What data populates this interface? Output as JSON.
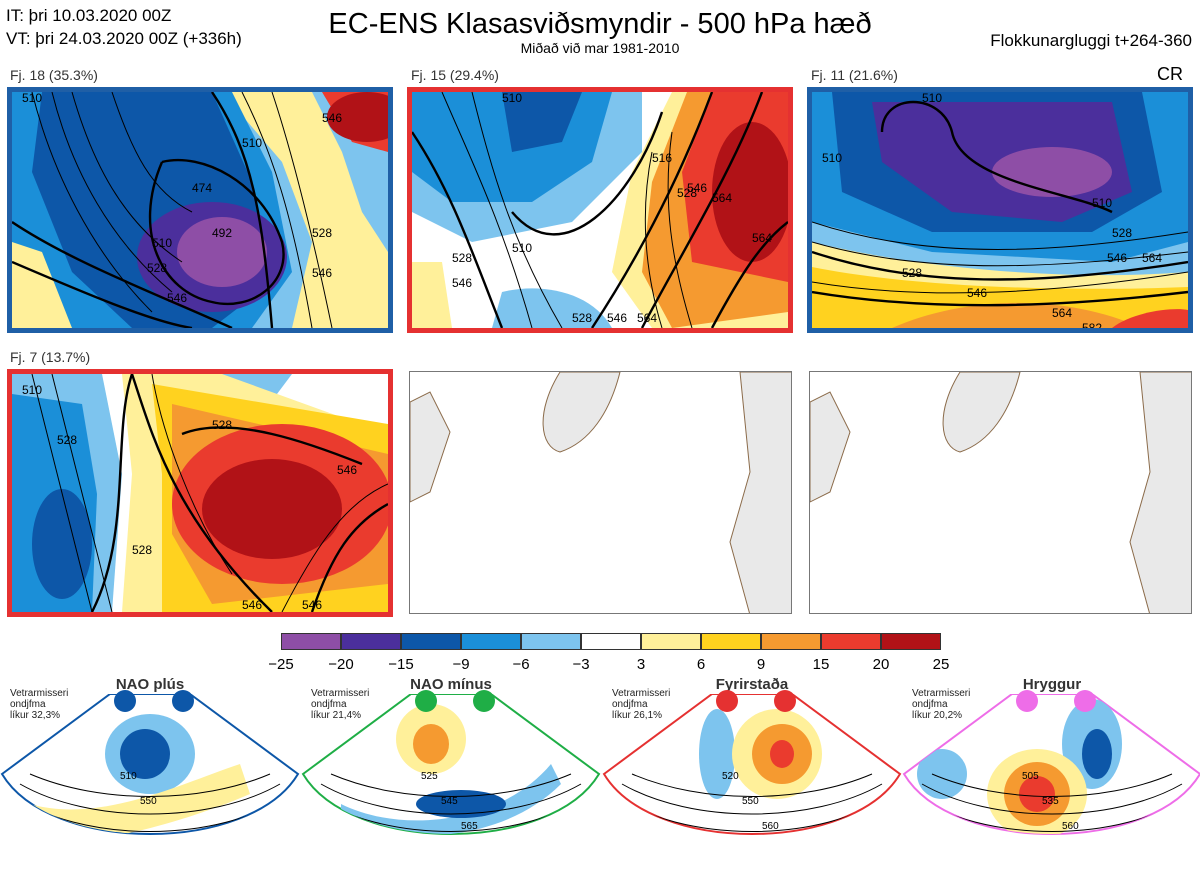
{
  "header": {
    "it_line": "IT: þri 10.03.2020 00Z",
    "vt_line": "VT: þri 24.03.2020 00Z  (+336h)",
    "title": "EC-ENS Klasasviðsmyndir - 500 hPa hæð",
    "subtitle": "Miðað við mar 1981-2010",
    "window": "Flokkunargluggi t+264-360",
    "regime_code": "CR"
  },
  "panels": [
    {
      "label": "Fj. 18 (35.3%)",
      "border": "#1f5fa6",
      "contours": [
        "474",
        "492",
        "510",
        "528",
        "546",
        "510",
        "528",
        "546",
        "510",
        "546"
      ]
    },
    {
      "label": "Fj. 15 (29.4%)",
      "border": "#e53131",
      "contours": [
        "510",
        "516",
        "528",
        "546",
        "564",
        "510",
        "528",
        "546",
        "564",
        "528",
        "546",
        "564"
      ]
    },
    {
      "label": "Fj. 11 (21.6%)",
      "border": "#1f5fa6",
      "contours": [
        "510",
        "510",
        "528",
        "528",
        "546",
        "564",
        "546",
        "564",
        "582",
        "510"
      ]
    },
    {
      "label": "Fj. 7 (13.7%)",
      "border": "#e53131",
      "contours": [
        "528",
        "546",
        "528",
        "546",
        "546",
        "510",
        "528"
      ]
    }
  ],
  "colorbar": {
    "ticks": [
      "−25",
      "−20",
      "−15",
      "−9",
      "−6",
      "−3",
      "3",
      "6",
      "9",
      "15",
      "20",
      "25"
    ],
    "colors": [
      "#8e4ea6",
      "#4b2f9c",
      "#0d57a8",
      "#1b8fd8",
      "#7dc4ee",
      "#ffffff",
      "#fff09a",
      "#ffd21f",
      "#f59a30",
      "#ea3b2e",
      "#b11217"
    ]
  },
  "regimes": [
    {
      "name": "NAO plús",
      "info1": "Vetrarmisseri",
      "info2": "ondjfma",
      "info3": "líkur 32,3%",
      "color": "#0d57a8",
      "contours": [
        "510",
        "550"
      ]
    },
    {
      "name": "NAO mínus",
      "info1": "Vetrarmisseri",
      "info2": "ondjfma",
      "info3": "líkur 21,4%",
      "color": "#1fae46",
      "contours": [
        "525",
        "545",
        "565"
      ]
    },
    {
      "name": "Fyrirstaða",
      "info1": "Vetrarmisseri",
      "info2": "ondjfma",
      "info3": "líkur 26,1%",
      "color": "#e53131",
      "contours": [
        "520",
        "550",
        "560"
      ]
    },
    {
      "name": "Hryggur",
      "info1": "Vetrarmisseri",
      "info2": "ondjfma",
      "info3": "líkur 20,2%",
      "color": "#ee6de8",
      "contours": [
        "505",
        "535",
        "560"
      ]
    }
  ]
}
